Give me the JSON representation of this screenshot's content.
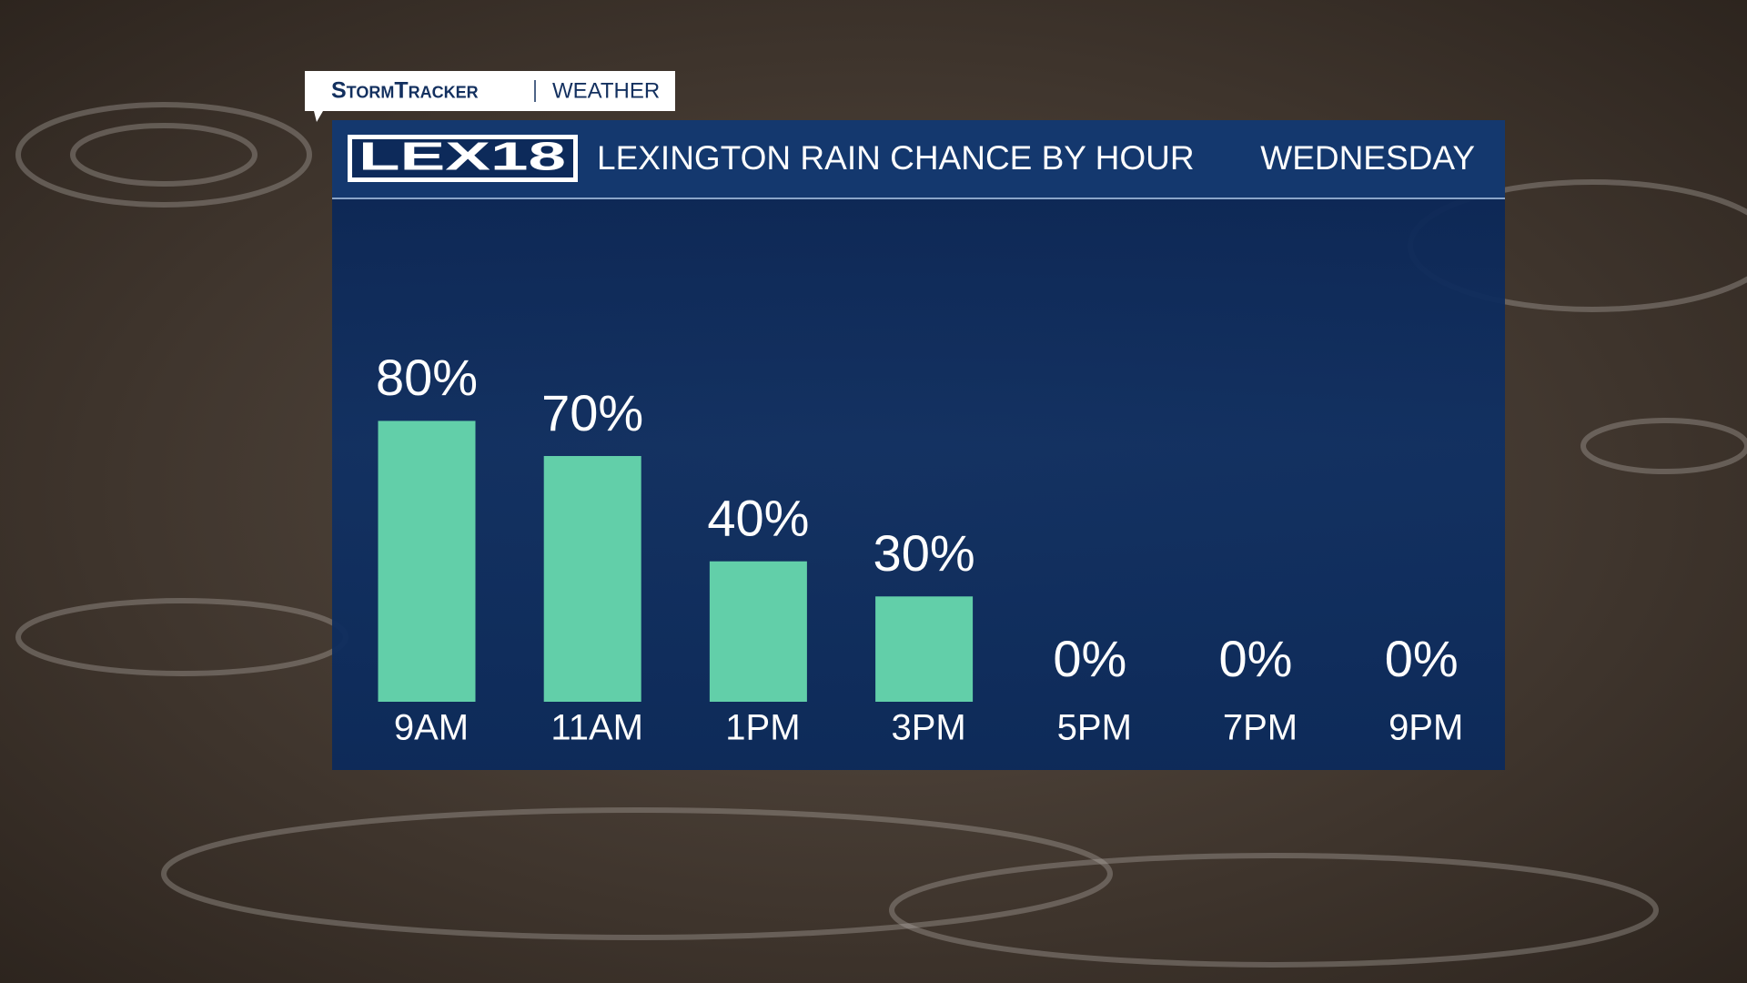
{
  "header": {
    "brand": "StormTracker",
    "section": "WEATHER",
    "logo": "LEX18"
  },
  "chart_data": {
    "type": "bar",
    "title": "LEXINGTON RAIN CHANCE BY HOUR",
    "subtitle": "WEDNESDAY",
    "categories": [
      "9AM",
      "11AM",
      "1PM",
      "3PM",
      "5PM",
      "7PM",
      "9PM"
    ],
    "values": [
      80,
      70,
      40,
      30,
      0,
      0,
      0
    ],
    "value_labels": [
      "80%",
      "70%",
      "40%",
      "30%",
      "0%",
      "0%",
      "0%"
    ],
    "color": "#62cfa9"
  }
}
